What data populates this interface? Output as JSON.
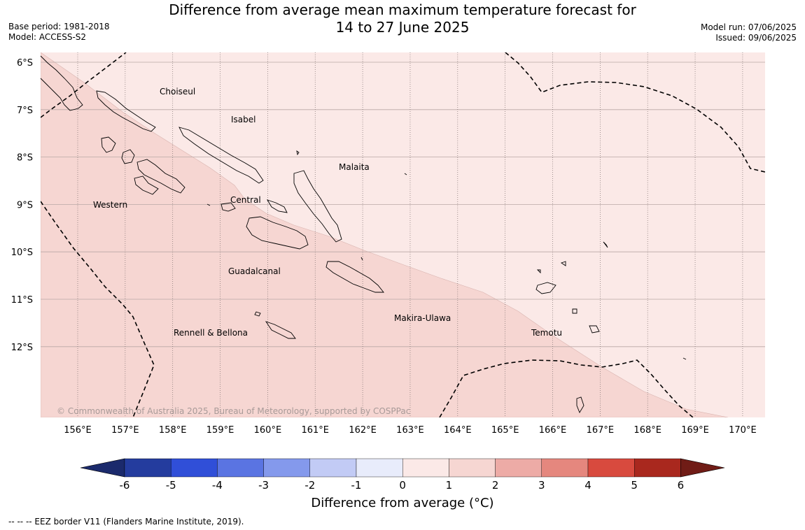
{
  "header": {
    "title_line1": "Difference from average mean maximum temperature forecast for",
    "title_line2": "14 to 27 June 2025",
    "base_period": "Base period: 1981-2018",
    "model": "Model: ACCESS-S2",
    "model_run": "Model run: 07/06/2025",
    "issued": "Issued: 09/06/2025"
  },
  "map": {
    "lat_labels": [
      "6°S",
      "7°S",
      "8°S",
      "9°S",
      "10°S",
      "11°S",
      "12°S"
    ],
    "lon_labels": [
      "156°E",
      "157°E",
      "158°E",
      "159°E",
      "160°E",
      "161°E",
      "162°E",
      "163°E",
      "164°E",
      "165°E",
      "166°E",
      "167°E",
      "168°E",
      "169°E",
      "170°E"
    ],
    "province_labels": {
      "choiseul": "Choiseul",
      "isabel": "Isabel",
      "malaita": "Malaita",
      "western": "Western",
      "central": "Central",
      "guadalcanal": "Guadalcanal",
      "makira": "Makira-Ulawa",
      "rennell": "Rennell & Bellona",
      "temotu": "Temotu"
    },
    "copyright": "© Commonwealth of Australia 2025, Bureau of Meteorology, supported by COSPPac",
    "anomaly_regions": [
      {
        "range": "0 to 1 °C",
        "color": "#fbe9e7"
      },
      {
        "range": "1 to 2 °C",
        "color": "#f6d6d2"
      }
    ]
  },
  "colorbar": {
    "title": "Difference from average (°C)",
    "ticks": [
      "-6",
      "-5",
      "-4",
      "-3",
      "-2",
      "-1",
      "0",
      "1",
      "2",
      "3",
      "4",
      "5",
      "6"
    ],
    "colors": [
      "#243c9e",
      "#304fd8",
      "#5a74e2",
      "#8499ec",
      "#c2cbf5",
      "#e8ecfb",
      "#fbe9e7",
      "#f6d6d2",
      "#edaba6",
      "#e5877e",
      "#d84a3e",
      "#a9281e"
    ],
    "under_color": "#1b2a6c",
    "over_color": "#701c16"
  },
  "footer": {
    "eez_note": "--  --  -- EEZ border V11 (Flanders Marine Institute, 2019)."
  }
}
